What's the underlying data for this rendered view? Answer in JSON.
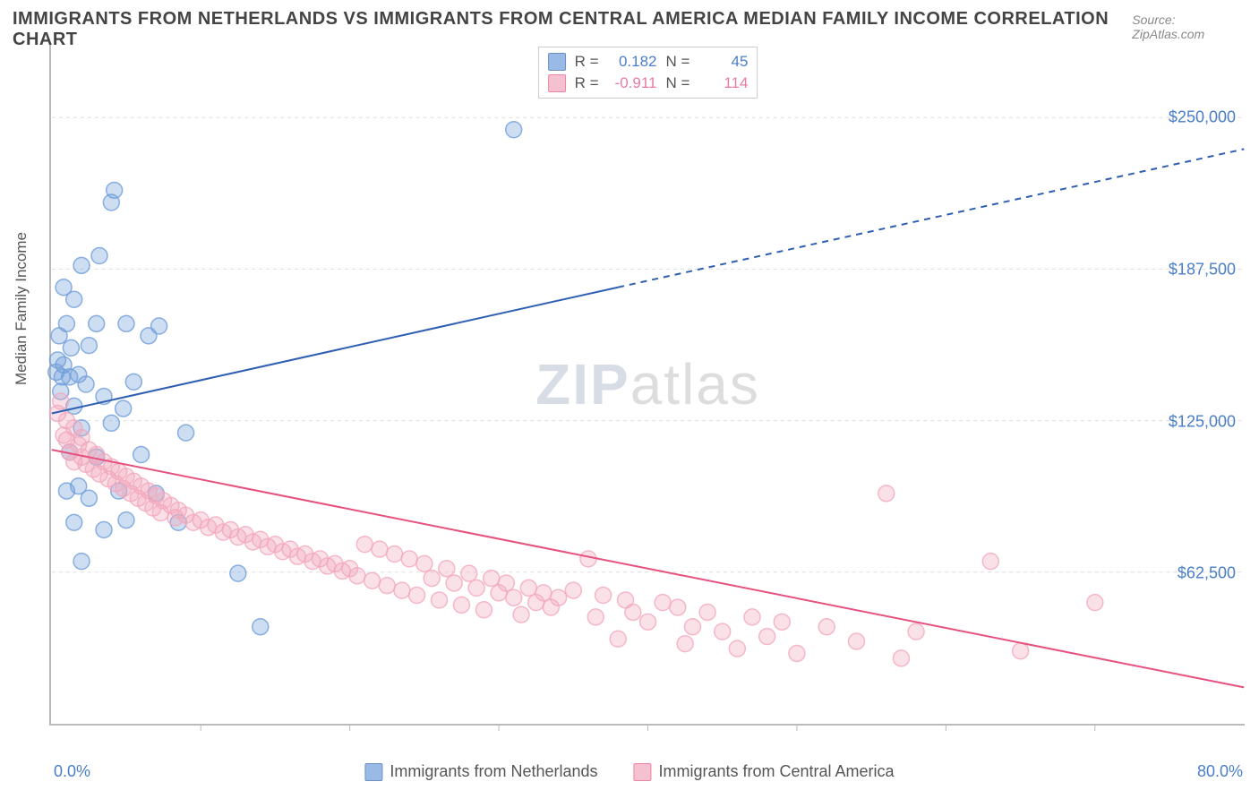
{
  "title": "IMMIGRANTS FROM NETHERLANDS VS IMMIGRANTS FROM CENTRAL AMERICA MEDIAN FAMILY INCOME CORRELATION CHART",
  "source": "Source: ZipAtlas.com",
  "ylabel": "Median Family Income",
  "watermark_zip": "ZIP",
  "watermark_atlas": "atlas",
  "chart": {
    "type": "scatter",
    "background_color": "#ffffff",
    "grid_color": "#dddddd",
    "axis_color": "#bbbbbb",
    "tick_label_color": "#4a7ec9",
    "xlim": [
      0,
      80
    ],
    "ylim": [
      0,
      280000
    ],
    "x_min_label": "0.0%",
    "x_max_label": "80.0%",
    "x_tick_positions": [
      10,
      20,
      30,
      40,
      50,
      60,
      70
    ],
    "y_ticks": [
      {
        "value": 62500,
        "label": "$62,500"
      },
      {
        "value": 125000,
        "label": "$125,000"
      },
      {
        "value": 187500,
        "label": "$187,500"
      },
      {
        "value": 250000,
        "label": "$250,000"
      }
    ],
    "marker_radius": 9,
    "marker_fill_opacity": 0.35,
    "marker_stroke_opacity": 0.8,
    "line_width": 2,
    "series": [
      {
        "name": "Immigrants from Netherlands",
        "color": "#6f9ed9",
        "line_color": "#2f5fb0",
        "R": "0.182",
        "N": "45",
        "trend": {
          "x1": 0,
          "y1": 128000,
          "x2_solid": 38,
          "y2_solid": 180000,
          "x2_dash": 80,
          "y2_dash": 237000
        },
        "points": [
          [
            0.3,
            145000
          ],
          [
            0.4,
            150000
          ],
          [
            0.5,
            160000
          ],
          [
            0.6,
            137000
          ],
          [
            0.7,
            143000
          ],
          [
            0.8,
            148000
          ],
          [
            0.8,
            180000
          ],
          [
            1.0,
            96000
          ],
          [
            1.0,
            165000
          ],
          [
            1.2,
            112000
          ],
          [
            1.2,
            143000
          ],
          [
            1.3,
            155000
          ],
          [
            1.5,
            83000
          ],
          [
            1.5,
            131000
          ],
          [
            1.5,
            175000
          ],
          [
            1.8,
            98000
          ],
          [
            1.8,
            144000
          ],
          [
            2.0,
            67000
          ],
          [
            2.0,
            122000
          ],
          [
            2.0,
            189000
          ],
          [
            2.3,
            140000
          ],
          [
            2.5,
            93000
          ],
          [
            2.5,
            156000
          ],
          [
            3.0,
            110000
          ],
          [
            3.0,
            165000
          ],
          [
            3.2,
            193000
          ],
          [
            3.5,
            80000
          ],
          [
            3.5,
            135000
          ],
          [
            4.0,
            124000
          ],
          [
            4.0,
            215000
          ],
          [
            4.2,
            220000
          ],
          [
            4.5,
            96000
          ],
          [
            4.8,
            130000
          ],
          [
            5.0,
            84000
          ],
          [
            5.0,
            165000
          ],
          [
            5.5,
            141000
          ],
          [
            6.0,
            111000
          ],
          [
            6.5,
            160000
          ],
          [
            7.0,
            95000
          ],
          [
            7.2,
            164000
          ],
          [
            8.5,
            83000
          ],
          [
            9.0,
            120000
          ],
          [
            12.5,
            62000
          ],
          [
            14.0,
            40000
          ],
          [
            31.0,
            245000
          ]
        ]
      },
      {
        "name": "Immigrants from Central America",
        "color": "#f2a8bd",
        "line_color": "#e6517e",
        "R": "-0.911",
        "N": "114",
        "trend": {
          "x1": 0,
          "y1": 113000,
          "x2_solid": 80,
          "y2_solid": 15000,
          "x2_dash": 80,
          "y2_dash": 15000
        },
        "points": [
          [
            0.4,
            128000
          ],
          [
            0.6,
            133000
          ],
          [
            0.8,
            119000
          ],
          [
            1.0,
            125000
          ],
          [
            1.0,
            117000
          ],
          [
            1.2,
            112000
          ],
          [
            1.5,
            122000
          ],
          [
            1.5,
            108000
          ],
          [
            1.8,
            115000
          ],
          [
            2.0,
            110000
          ],
          [
            2.0,
            118000
          ],
          [
            2.3,
            107000
          ],
          [
            2.5,
            113000
          ],
          [
            2.8,
            105000
          ],
          [
            3.0,
            111000
          ],
          [
            3.2,
            103000
          ],
          [
            3.5,
            108000
          ],
          [
            3.8,
            101000
          ],
          [
            4.0,
            106000
          ],
          [
            4.3,
            99000
          ],
          [
            4.5,
            104000
          ],
          [
            4.8,
            97000
          ],
          [
            5.0,
            102000
          ],
          [
            5.3,
            95000
          ],
          [
            5.5,
            100000
          ],
          [
            5.8,
            93000
          ],
          [
            6.0,
            98000
          ],
          [
            6.3,
            91000
          ],
          [
            6.5,
            96000
          ],
          [
            6.8,
            89000
          ],
          [
            7.0,
            94000
          ],
          [
            7.3,
            87000
          ],
          [
            7.5,
            92000
          ],
          [
            8.0,
            90000
          ],
          [
            8.3,
            85000
          ],
          [
            8.5,
            88000
          ],
          [
            9.0,
            86000
          ],
          [
            9.5,
            83000
          ],
          [
            10.0,
            84000
          ],
          [
            10.5,
            81000
          ],
          [
            11.0,
            82000
          ],
          [
            11.5,
            79000
          ],
          [
            12.0,
            80000
          ],
          [
            12.5,
            77000
          ],
          [
            13.0,
            78000
          ],
          [
            13.5,
            75000
          ],
          [
            14.0,
            76000
          ],
          [
            14.5,
            73000
          ],
          [
            15.0,
            74000
          ],
          [
            15.5,
            71000
          ],
          [
            16.0,
            72000
          ],
          [
            16.5,
            69000
          ],
          [
            17.0,
            70000
          ],
          [
            17.5,
            67000
          ],
          [
            18.0,
            68000
          ],
          [
            18.5,
            65000
          ],
          [
            19.0,
            66000
          ],
          [
            19.5,
            63000
          ],
          [
            20.0,
            64000
          ],
          [
            20.5,
            61000
          ],
          [
            21.0,
            74000
          ],
          [
            21.5,
            59000
          ],
          [
            22.0,
            72000
          ],
          [
            22.5,
            57000
          ],
          [
            23.0,
            70000
          ],
          [
            23.5,
            55000
          ],
          [
            24.0,
            68000
          ],
          [
            24.5,
            53000
          ],
          [
            25.0,
            66000
          ],
          [
            25.5,
            60000
          ],
          [
            26.0,
            51000
          ],
          [
            26.5,
            64000
          ],
          [
            27.0,
            58000
          ],
          [
            27.5,
            49000
          ],
          [
            28.0,
            62000
          ],
          [
            28.5,
            56000
          ],
          [
            29.0,
            47000
          ],
          [
            29.5,
            60000
          ],
          [
            30.0,
            54000
          ],
          [
            30.5,
            58000
          ],
          [
            31.0,
            52000
          ],
          [
            31.5,
            45000
          ],
          [
            32.0,
            56000
          ],
          [
            32.5,
            50000
          ],
          [
            33.0,
            54000
          ],
          [
            33.5,
            48000
          ],
          [
            34.0,
            52000
          ],
          [
            35.0,
            55000
          ],
          [
            36.0,
            68000
          ],
          [
            36.5,
            44000
          ],
          [
            37.0,
            53000
          ],
          [
            38.0,
            35000
          ],
          [
            38.5,
            51000
          ],
          [
            39.0,
            46000
          ],
          [
            40.0,
            42000
          ],
          [
            41.0,
            50000
          ],
          [
            42.0,
            48000
          ],
          [
            42.5,
            33000
          ],
          [
            43.0,
            40000
          ],
          [
            44.0,
            46000
          ],
          [
            45.0,
            38000
          ],
          [
            46.0,
            31000
          ],
          [
            47.0,
            44000
          ],
          [
            48.0,
            36000
          ],
          [
            49.0,
            42000
          ],
          [
            50.0,
            29000
          ],
          [
            52.0,
            40000
          ],
          [
            54.0,
            34000
          ],
          [
            56.0,
            95000
          ],
          [
            57.0,
            27000
          ],
          [
            58.0,
            38000
          ],
          [
            63.0,
            67000
          ],
          [
            65.0,
            30000
          ],
          [
            70.0,
            50000
          ]
        ]
      }
    ]
  },
  "legend_top": {
    "r_label": "R =",
    "n_label": "N ="
  }
}
